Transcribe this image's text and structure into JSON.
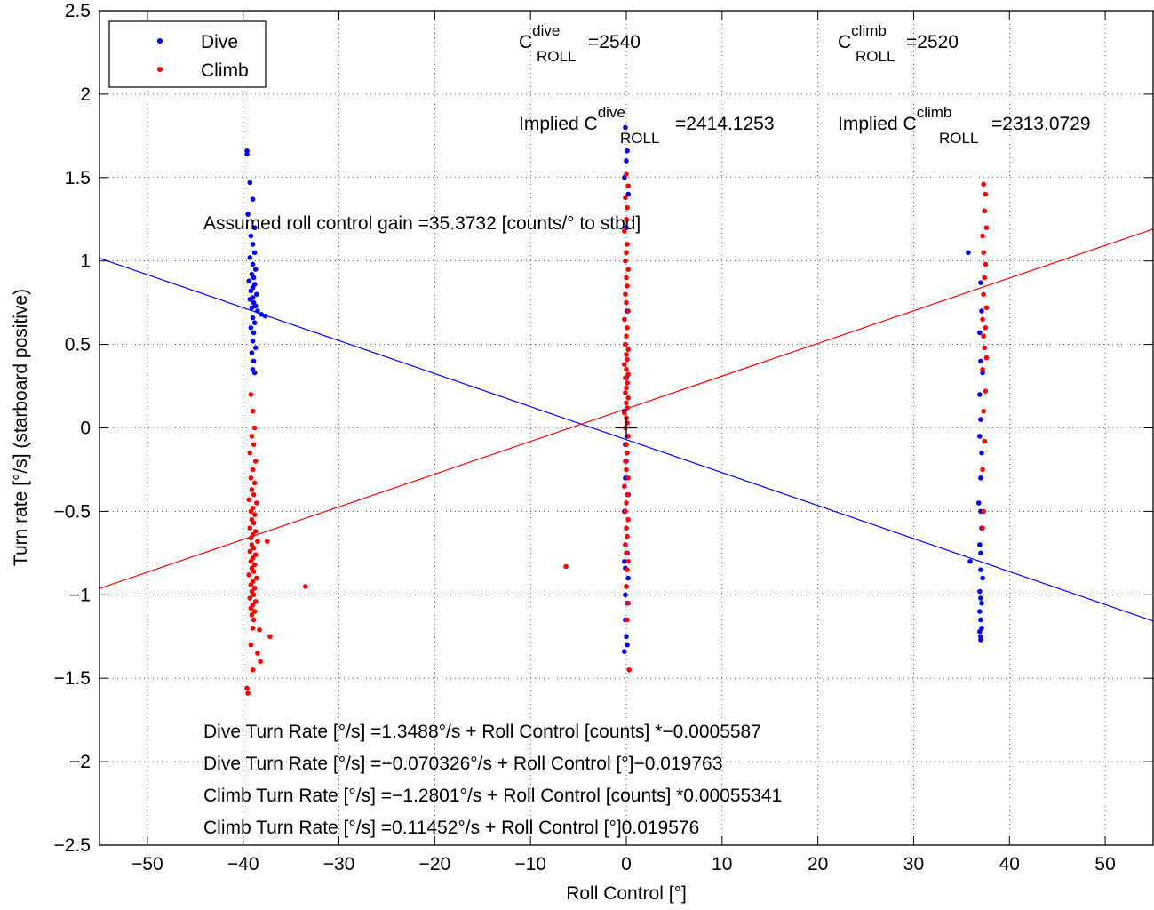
{
  "chart_data": {
    "type": "scatter",
    "xlabel": "Roll Control [°]",
    "ylabel": "Turn rate [°/s] (starboard positive)",
    "xlim": [
      -55,
      55
    ],
    "ylim": [
      -2.5,
      2.5
    ],
    "x_ticks": [
      -50,
      -40,
      -30,
      -20,
      -10,
      0,
      10,
      20,
      30,
      40,
      50
    ],
    "x_tick_labels": [
      "−50",
      "−40",
      "−30",
      "−20",
      "−10",
      "0",
      "10",
      "20",
      "30",
      "40",
      "50"
    ],
    "y_ticks": [
      -2.5,
      -2,
      -1.5,
      -1,
      -0.5,
      0,
      0.5,
      1,
      1.5,
      2,
      2.5
    ],
    "y_tick_labels": [
      "−2.5",
      "−2",
      "−1.5",
      "−1",
      "−0.5",
      "0",
      "0.5",
      "1",
      "1.5",
      "2",
      "2.5"
    ],
    "grid": true,
    "legend": {
      "position": "top-left",
      "entries": [
        {
          "label": "Dive",
          "color": "#0000ff"
        },
        {
          "label": "Climb",
          "color": "#ff0000"
        }
      ]
    },
    "annotations": {
      "c_roll_dive_main": "C",
      "c_roll_dive_sup": "dive",
      "c_roll_dive_sub": "ROLL",
      "c_roll_dive_val": "=2540",
      "c_roll_climb_main": "C",
      "c_roll_climb_sup": "climb",
      "c_roll_climb_sub": "ROLL",
      "c_roll_climb_val": "=2520",
      "implied_dive_main": "Implied C",
      "implied_dive_sup": "dive",
      "implied_dive_sub": "ROLL",
      "implied_dive_val": "=2414.1253",
      "implied_climb_main": "Implied C",
      "implied_climb_sup": "climb",
      "implied_climb_sub": "ROLL",
      "implied_climb_val": "=2313.0729",
      "gain": "Assumed roll control gain =35.3732 [counts/° to stbd]",
      "eq_dive_counts": "Dive Turn Rate [°/s] =1.3488°/s + Roll Control [counts] *−0.0005587",
      "eq_dive_deg": "Dive Turn Rate [°/s] =−0.070326°/s + Roll Control [°]−0.019763",
      "eq_climb_counts": "Climb Turn Rate [°/s] =−1.2801°/s + Roll Control [counts] *0.00055341",
      "eq_climb_deg": "Climb Turn Rate [°/s] =0.11452°/s + Roll Control [°]0.019576"
    },
    "fit_lines": [
      {
        "name": "Dive",
        "color": "#0000ff",
        "intercept": -0.070326,
        "slope": -0.019763
      },
      {
        "name": "Climb",
        "color": "#ff0000",
        "intercept": 0.11452,
        "slope": 0.019576
      }
    ],
    "marker": {
      "x": 0,
      "y": 0
    },
    "series": [
      {
        "name": "Dive",
        "color": "#0000ff",
        "points": [
          [
            -39.6,
            1.66
          ],
          [
            -39.6,
            1.64
          ],
          [
            -39.3,
            1.47
          ],
          [
            -39.0,
            1.37
          ],
          [
            -39.5,
            1.28
          ],
          [
            -38.8,
            1.2
          ],
          [
            -39.2,
            1.15
          ],
          [
            -39.0,
            1.1
          ],
          [
            -38.8,
            1.05
          ],
          [
            -39.3,
            1.02
          ],
          [
            -39.0,
            0.98
          ],
          [
            -38.7,
            0.95
          ],
          [
            -39.1,
            0.92
          ],
          [
            -38.9,
            0.9
          ],
          [
            -39.4,
            0.88
          ],
          [
            -38.8,
            0.86
          ],
          [
            -39.0,
            0.84
          ],
          [
            -39.2,
            0.82
          ],
          [
            -38.6,
            0.8
          ],
          [
            -39.0,
            0.78
          ],
          [
            -39.3,
            0.77
          ],
          [
            -38.9,
            0.75
          ],
          [
            -38.7,
            0.73
          ],
          [
            -39.1,
            0.72
          ],
          [
            -38.5,
            0.7
          ],
          [
            -38.1,
            0.68
          ],
          [
            -37.7,
            0.67
          ],
          [
            -39.0,
            0.66
          ],
          [
            -38.8,
            0.63
          ],
          [
            -39.2,
            0.6
          ],
          [
            -38.9,
            0.57
          ],
          [
            -39.0,
            0.52
          ],
          [
            -38.7,
            0.48
          ],
          [
            -39.1,
            0.45
          ],
          [
            -38.9,
            0.4
          ],
          [
            -39.0,
            0.35
          ],
          [
            -38.8,
            0.33
          ],
          [
            -0.1,
            1.8
          ],
          [
            0.1,
            1.66
          ],
          [
            0.0,
            1.6
          ],
          [
            -0.2,
            1.5
          ],
          [
            0.2,
            1.4
          ],
          [
            0.0,
            1.2
          ],
          [
            0.1,
            0.7
          ],
          [
            -0.1,
            0.5
          ],
          [
            0.0,
            0.3
          ],
          [
            -0.2,
            0.1
          ],
          [
            0.1,
            -0.05
          ],
          [
            -0.1,
            -0.1
          ],
          [
            0.0,
            -0.2
          ],
          [
            -0.1,
            -0.3
          ],
          [
            0.2,
            -0.4
          ],
          [
            -0.2,
            -0.5
          ],
          [
            0.0,
            -0.6
          ],
          [
            -0.1,
            -0.7
          ],
          [
            0.1,
            -0.75
          ],
          [
            -0.2,
            -0.8
          ],
          [
            -0.1,
            -0.84
          ],
          [
            0.2,
            -0.9
          ],
          [
            0.0,
            -0.95
          ],
          [
            -0.1,
            -1.0
          ],
          [
            0.1,
            -1.05
          ],
          [
            -0.1,
            -1.15
          ],
          [
            0.0,
            -1.25
          ],
          [
            -0.2,
            -1.34
          ],
          [
            0.1,
            -1.3
          ],
          [
            35.7,
            1.05
          ],
          [
            37.0,
            0.87
          ],
          [
            37.1,
            0.7
          ],
          [
            36.9,
            0.57
          ],
          [
            37.0,
            0.4
          ],
          [
            37.2,
            0.33
          ],
          [
            36.9,
            0.2
          ],
          [
            37.0,
            0.05
          ],
          [
            36.9,
            -0.05
          ],
          [
            37.1,
            -0.15
          ],
          [
            37.0,
            -0.3
          ],
          [
            36.8,
            -0.45
          ],
          [
            37.0,
            -0.5
          ],
          [
            37.1,
            -0.6
          ],
          [
            36.9,
            -0.7
          ],
          [
            37.0,
            -0.75
          ],
          [
            35.9,
            -0.8
          ],
          [
            37.0,
            -0.85
          ],
          [
            37.2,
            -0.9
          ],
          [
            36.9,
            -0.98
          ],
          [
            37.0,
            -1.02
          ],
          [
            37.1,
            -1.05
          ],
          [
            36.9,
            -1.1
          ],
          [
            37.0,
            -1.15
          ],
          [
            37.1,
            -1.2
          ],
          [
            36.9,
            -1.22
          ],
          [
            37.0,
            -1.25
          ],
          [
            37.0,
            -1.27
          ]
        ]
      },
      {
        "name": "Climb",
        "color": "#ff0000",
        "points": [
          [
            -39.2,
            0.2
          ],
          [
            -39.0,
            0.1
          ],
          [
            -38.8,
            0.0
          ],
          [
            -39.1,
            -0.05
          ],
          [
            -38.9,
            -0.1
          ],
          [
            -39.3,
            -0.15
          ],
          [
            -38.7,
            -0.2
          ],
          [
            -39.0,
            -0.25
          ],
          [
            -39.2,
            -0.3
          ],
          [
            -38.8,
            -0.33
          ],
          [
            -39.1,
            -0.37
          ],
          [
            -38.9,
            -0.4
          ],
          [
            -39.4,
            -0.43
          ],
          [
            -38.6,
            -0.45
          ],
          [
            -39.0,
            -0.48
          ],
          [
            -39.2,
            -0.5
          ],
          [
            -38.8,
            -0.52
          ],
          [
            -39.1,
            -0.55
          ],
          [
            -38.9,
            -0.57
          ],
          [
            -39.3,
            -0.6
          ],
          [
            -38.7,
            -0.62
          ],
          [
            -39.0,
            -0.64
          ],
          [
            -39.2,
            -0.66
          ],
          [
            -38.5,
            -0.68
          ],
          [
            -39.1,
            -0.7
          ],
          [
            -38.9,
            -0.72
          ],
          [
            -39.3,
            -0.74
          ],
          [
            -38.7,
            -0.76
          ],
          [
            -39.0,
            -0.78
          ],
          [
            -39.2,
            -0.8
          ],
          [
            -38.8,
            -0.82
          ],
          [
            -39.1,
            -0.84
          ],
          [
            -38.9,
            -0.86
          ],
          [
            -39.4,
            -0.88
          ],
          [
            -38.6,
            -0.9
          ],
          [
            -39.0,
            -0.92
          ],
          [
            -39.2,
            -0.94
          ],
          [
            -38.8,
            -0.96
          ],
          [
            -39.1,
            -0.98
          ],
          [
            -38.9,
            -1.0
          ],
          [
            -39.3,
            -1.02
          ],
          [
            -38.7,
            -1.04
          ],
          [
            -39.0,
            -1.06
          ],
          [
            -39.2,
            -1.08
          ],
          [
            -38.8,
            -1.1
          ],
          [
            -39.1,
            -1.12
          ],
          [
            -38.9,
            -1.15
          ],
          [
            -39.0,
            -1.2
          ],
          [
            -39.2,
            -1.3
          ],
          [
            -38.5,
            -1.35
          ],
          [
            -38.2,
            -1.4
          ],
          [
            -39.0,
            -1.45
          ],
          [
            -39.6,
            -1.56
          ],
          [
            -39.5,
            -1.59
          ],
          [
            -37.5,
            -0.68
          ],
          [
            -37.2,
            -1.25
          ],
          [
            -38.3,
            -1.21
          ],
          [
            -33.5,
            -0.95
          ],
          [
            -6.3,
            -0.83
          ],
          [
            0.0,
            1.52
          ],
          [
            0.2,
            1.45
          ],
          [
            -0.1,
            1.38
          ],
          [
            0.1,
            1.32
          ],
          [
            0.0,
            1.25
          ],
          [
            -0.2,
            1.18
          ],
          [
            0.1,
            1.1
          ],
          [
            0.0,
            1.05
          ],
          [
            -0.1,
            1.0
          ],
          [
            0.2,
            0.95
          ],
          [
            0.0,
            0.9
          ],
          [
            0.1,
            0.85
          ],
          [
            -0.1,
            0.8
          ],
          [
            0.0,
            0.75
          ],
          [
            0.2,
            0.7
          ],
          [
            -0.2,
            0.65
          ],
          [
            0.1,
            0.6
          ],
          [
            0.0,
            0.55
          ],
          [
            -0.1,
            0.5
          ],
          [
            0.2,
            0.47
          ],
          [
            0.0,
            0.44
          ],
          [
            0.1,
            0.41
          ],
          [
            -0.2,
            0.38
          ],
          [
            0.0,
            0.35
          ],
          [
            0.2,
            0.32
          ],
          [
            -0.1,
            0.3
          ],
          [
            0.1,
            0.27
          ],
          [
            0.0,
            0.24
          ],
          [
            -0.1,
            0.21
          ],
          [
            0.2,
            0.18
          ],
          [
            0.0,
            0.15
          ],
          [
            0.1,
            0.12
          ],
          [
            -0.2,
            0.09
          ],
          [
            0.0,
            0.06
          ],
          [
            0.1,
            0.03
          ],
          [
            -0.1,
            0.0
          ],
          [
            0.2,
            -0.05
          ],
          [
            0.0,
            -0.1
          ],
          [
            0.1,
            -0.15
          ],
          [
            -0.1,
            -0.2
          ],
          [
            0.0,
            -0.25
          ],
          [
            0.2,
            -0.3
          ],
          [
            -0.2,
            -0.35
          ],
          [
            0.1,
            -0.4
          ],
          [
            0.0,
            -0.45
          ],
          [
            -0.1,
            -0.5
          ],
          [
            0.2,
            -0.55
          ],
          [
            0.0,
            -0.6
          ],
          [
            0.1,
            -0.65
          ],
          [
            -0.1,
            -0.7
          ],
          [
            0.0,
            -0.75
          ],
          [
            0.2,
            -0.8
          ],
          [
            0.1,
            -0.85
          ],
          [
            0.0,
            -0.95
          ],
          [
            0.2,
            -1.05
          ],
          [
            0.1,
            -1.15
          ],
          [
            0.3,
            -1.45
          ],
          [
            37.3,
            1.46
          ],
          [
            37.5,
            1.4
          ],
          [
            37.4,
            1.3
          ],
          [
            37.6,
            1.2
          ],
          [
            37.2,
            1.15
          ],
          [
            37.3,
            1.05
          ],
          [
            37.5,
            0.98
          ],
          [
            37.4,
            0.9
          ],
          [
            37.3,
            0.8
          ],
          [
            37.6,
            0.72
          ],
          [
            37.2,
            0.65
          ],
          [
            37.5,
            0.6
          ],
          [
            37.3,
            0.55
          ],
          [
            37.4,
            0.48
          ],
          [
            37.6,
            0.42
          ],
          [
            37.2,
            0.35
          ],
          [
            37.5,
            0.22
          ],
          [
            37.3,
            0.1
          ],
          [
            37.4,
            -0.08
          ],
          [
            37.2,
            -0.25
          ],
          [
            37.3,
            -0.5
          ],
          [
            37.2,
            -0.6
          ]
        ]
      }
    ]
  }
}
